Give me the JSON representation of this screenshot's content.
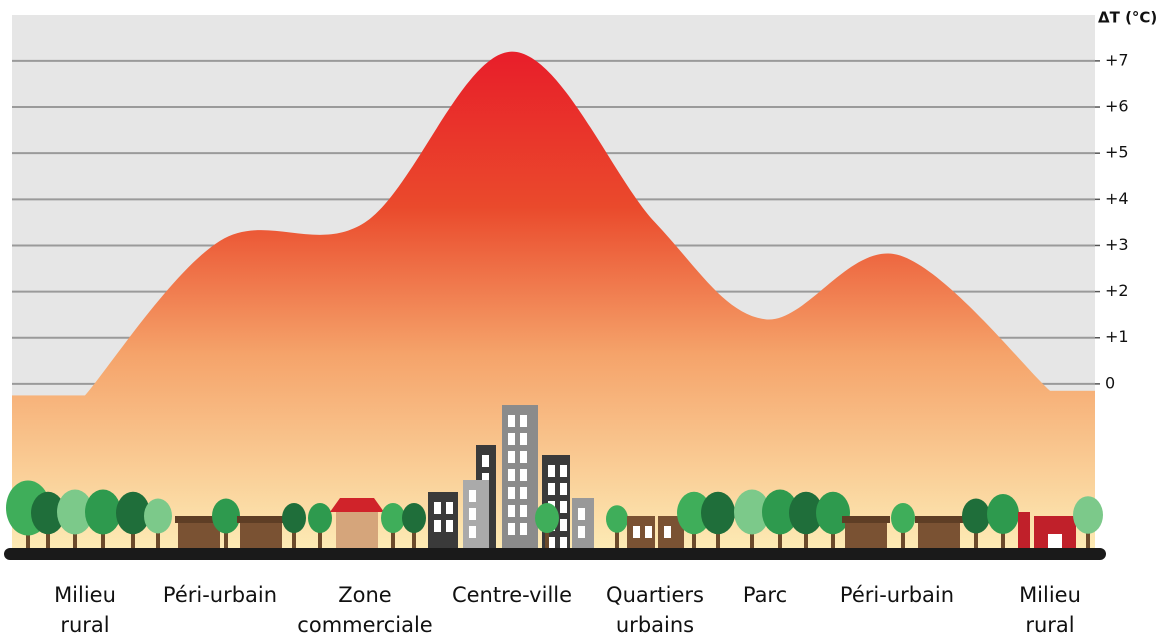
{
  "chart_data": {
    "type": "area",
    "y_axis_title": "ΔT (°C)",
    "categories": [
      "Milieu rural",
      "Péri-urbain",
      "Zone commerciale",
      "Centre-ville",
      "Quartiers urbains",
      "Parc",
      "Péri-urbain",
      "Milieu rural"
    ],
    "series": [
      {
        "name": "ΔT",
        "color": "#e8202a",
        "values": [
          -0.25,
          3.1,
          3.5,
          7.2,
          3.5,
          1.4,
          2.8,
          -0.15
        ]
      }
    ],
    "ylim": [
      -3.6,
      7.7
    ],
    "yticks": [
      0,
      {
        "value": 1,
        "label": "+1"
      },
      {
        "value": 2,
        "label": "+2"
      },
      {
        "value": 3,
        "label": "+3"
      },
      {
        "value": 4,
        "label": "+4"
      },
      {
        "value": 5,
        "label": "+5"
      },
      {
        "value": 6,
        "label": "+6"
      },
      {
        "value": 7,
        "label": "+7"
      }
    ],
    "grid": true
  }
}
